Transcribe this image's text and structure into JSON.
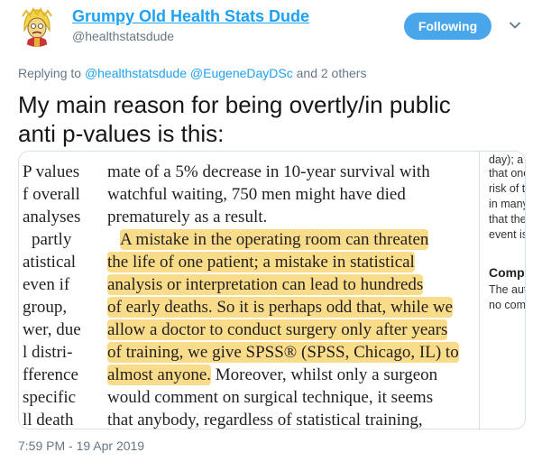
{
  "header": {
    "display_name": "Grumpy Old Health Stats Dude",
    "handle": "@healthstatsdude",
    "follow_label": "Following"
  },
  "reply": {
    "prefix": "Replying to",
    "mention1": "@healthstatsdude",
    "mention2": "@EugeneDayDSc",
    "suffix": "and 2 others"
  },
  "tweet": {
    "line1": "My main reason for being overtly/in public",
    "line2": "anti p-values is this:",
    "timestamp": "7:59 PM - 19 Apr 2019"
  },
  "colors": {
    "accent": "#1da1f2",
    "follow_bg": "#4aa6eb",
    "highlight": "#f9dc8a"
  },
  "icons": {
    "avatar": "cartoon-old-man-avatar",
    "menu": "chevron-down-icon"
  },
  "excerpt": {
    "left_column": [
      "P values",
      "f overall",
      "analyses",
      "partly",
      "atistical",
      "even if",
      "group,",
      "wer, due",
      "l distri-",
      "fference",
      "specific",
      "ll death"
    ],
    "main_column": [
      "mate of a 5% decrease in 10-year survival with",
      "watchful waiting, 750 men might have died",
      "prematurely as a result."
    ],
    "highlighted": [
      "A mistake in the operating room can threaten",
      "the life of one patient; a mistake in statistical",
      "analysis or interpretation can lead to hundreds",
      "of early deaths. So it is perhaps odd that, while we",
      "allow a doctor to conduct surgery only after years",
      "of training, we give SPSS® (SPSS, Chicago, IL) to",
      "almost anyone."
    ],
    "highlight_tail": "Moreover, whilst only a surgeon",
    "tail_lines": [
      "would comment on surgical technique, it seems",
      "that anybody, regardless of statistical training,"
    ],
    "right_column": [
      "day); a",
      "that one",
      "risk of t",
      "in many",
      "that the",
      "event is"
    ],
    "right_heading": "Comp",
    "right_after": [
      "The aut",
      "no com"
    ]
  }
}
